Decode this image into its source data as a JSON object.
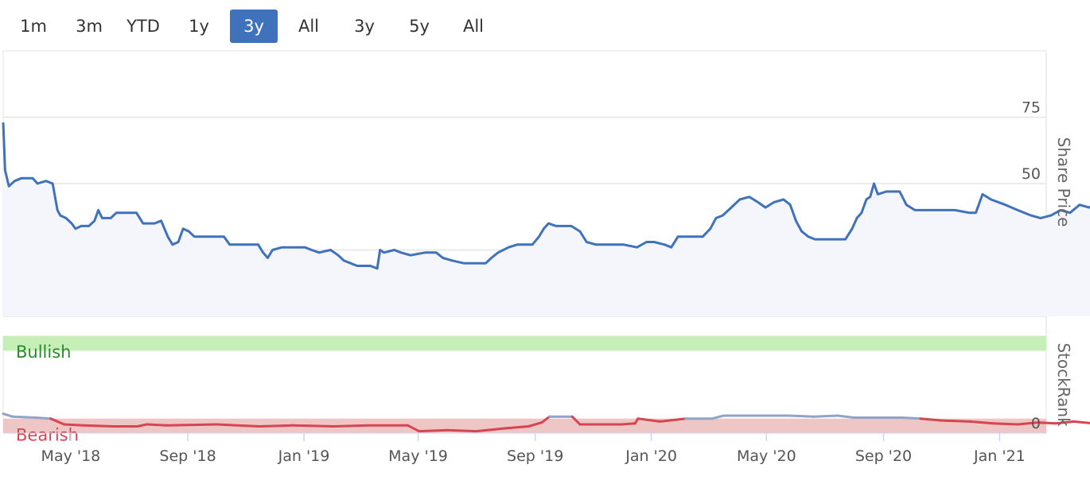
{
  "range_buttons": [
    {
      "label": "1m",
      "active": false
    },
    {
      "label": "3m",
      "active": false
    },
    {
      "label": "YTD",
      "active": false
    },
    {
      "label": "1y",
      "active": false
    },
    {
      "label": "3y",
      "active": true
    },
    {
      "label": "All",
      "active": false
    },
    {
      "label": "3y",
      "active": false
    },
    {
      "label": "5y",
      "active": false
    },
    {
      "label": "All",
      "active": false
    }
  ],
  "colors": {
    "price_line": "#3f72bb",
    "price_fill": "#f4f6fb",
    "bullish_band": "#c6efb7",
    "bearish_band": "#efc6c6",
    "bearish_line": "#d64550",
    "neutral_line": "#8ea4c8",
    "active_button": "#3f72bb"
  },
  "chart_data": [
    {
      "type": "line",
      "ylabel": "Share Price",
      "ylim": [
        0,
        100
      ],
      "y_ticks": [
        0,
        25,
        50,
        75
      ],
      "x_start": "2018-02-19",
      "x_end": "2021-02-19",
      "x_ticks": [
        {
          "label": "May '18",
          "date": "2018-05-01"
        },
        {
          "label": "Sep '18",
          "date": "2018-09-01"
        },
        {
          "label": "Jan '19",
          "date": "2019-01-01"
        },
        {
          "label": "May '19",
          "date": "2019-05-01"
        },
        {
          "label": "Sep '19",
          "date": "2019-09-01"
        },
        {
          "label": "Jan '20",
          "date": "2020-01-01"
        },
        {
          "label": "May '20",
          "date": "2020-05-01"
        },
        {
          "label": "Sep '20",
          "date": "2020-09-01"
        },
        {
          "label": "Jan '21",
          "date": "2021-01-01"
        }
      ],
      "series": [
        {
          "points": [
            [
              "2018-02-19",
              73
            ],
            [
              "2018-02-21",
              55
            ],
            [
              "2018-02-25",
              49
            ],
            [
              "2018-03-03",
              51
            ],
            [
              "2018-03-10",
              52
            ],
            [
              "2018-03-22",
              52
            ],
            [
              "2018-03-27",
              50
            ],
            [
              "2018-04-05",
              51
            ],
            [
              "2018-04-12",
              50
            ],
            [
              "2018-04-17",
              40
            ],
            [
              "2018-04-20",
              38
            ],
            [
              "2018-04-26",
              37
            ],
            [
              "2018-05-02",
              35
            ],
            [
              "2018-05-06",
              33
            ],
            [
              "2018-05-12",
              34
            ],
            [
              "2018-05-20",
              34
            ],
            [
              "2018-05-26",
              36
            ],
            [
              "2018-05-30",
              40
            ],
            [
              "2018-06-03",
              37
            ],
            [
              "2018-06-12",
              37
            ],
            [
              "2018-06-18",
              39
            ],
            [
              "2018-07-01",
              39
            ],
            [
              "2018-07-09",
              39
            ],
            [
              "2018-07-16",
              35
            ],
            [
              "2018-07-28",
              35
            ],
            [
              "2018-08-04",
              36
            ],
            [
              "2018-08-11",
              30
            ],
            [
              "2018-08-16",
              27
            ],
            [
              "2018-08-22",
              28
            ],
            [
              "2018-08-27",
              33
            ],
            [
              "2018-09-02",
              32
            ],
            [
              "2018-09-08",
              30
            ],
            [
              "2018-09-24",
              30
            ],
            [
              "2018-10-09",
              30
            ],
            [
              "2018-10-15",
              27
            ],
            [
              "2018-11-01",
              27
            ],
            [
              "2018-11-14",
              27
            ],
            [
              "2018-11-19",
              24
            ],
            [
              "2018-11-24",
              22
            ],
            [
              "2018-11-29",
              25
            ],
            [
              "2018-12-09",
              26
            ],
            [
              "2018-12-22",
              26
            ],
            [
              "2019-01-02",
              26
            ],
            [
              "2019-01-09",
              25
            ],
            [
              "2019-01-17",
              24
            ],
            [
              "2019-01-29",
              25
            ],
            [
              "2019-02-06",
              23
            ],
            [
              "2019-02-12",
              21
            ],
            [
              "2019-02-19",
              20
            ],
            [
              "2019-02-26",
              19
            ],
            [
              "2019-03-12",
              19
            ],
            [
              "2019-03-19",
              18
            ],
            [
              "2019-03-22",
              25
            ],
            [
              "2019-03-26",
              24
            ],
            [
              "2019-04-06",
              25
            ],
            [
              "2019-04-13",
              24
            ],
            [
              "2019-04-23",
              23
            ],
            [
              "2019-05-08",
              24
            ],
            [
              "2019-05-20",
              24
            ],
            [
              "2019-05-27",
              22
            ],
            [
              "2019-06-06",
              21
            ],
            [
              "2019-06-18",
              20
            ],
            [
              "2019-07-01",
              20
            ],
            [
              "2019-07-11",
              20
            ],
            [
              "2019-07-17",
              22
            ],
            [
              "2019-07-24",
              24
            ],
            [
              "2019-08-04",
              26
            ],
            [
              "2019-08-13",
              27
            ],
            [
              "2019-08-29",
              27
            ],
            [
              "2019-09-05",
              30
            ],
            [
              "2019-09-10",
              33
            ],
            [
              "2019-09-15",
              35
            ],
            [
              "2019-09-23",
              34
            ],
            [
              "2019-10-09",
              34
            ],
            [
              "2019-10-18",
              32
            ],
            [
              "2019-10-25",
              28
            ],
            [
              "2019-11-04",
              27
            ],
            [
              "2019-11-18",
              27
            ],
            [
              "2019-12-03",
              27
            ],
            [
              "2019-12-17",
              26
            ],
            [
              "2019-12-27",
              28
            ],
            [
              "2020-01-04",
              28
            ],
            [
              "2020-01-15",
              27
            ],
            [
              "2020-01-22",
              26
            ],
            [
              "2020-01-29",
              30
            ],
            [
              "2020-02-08",
              30
            ],
            [
              "2020-02-24",
              30
            ],
            [
              "2020-03-03",
              33
            ],
            [
              "2020-03-09",
              37
            ],
            [
              "2020-03-16",
              38
            ],
            [
              "2020-03-25",
              41
            ],
            [
              "2020-04-03",
              44
            ],
            [
              "2020-04-13",
              45
            ],
            [
              "2020-04-22",
              43
            ],
            [
              "2020-04-30",
              41
            ],
            [
              "2020-05-09",
              43
            ],
            [
              "2020-05-19",
              44
            ],
            [
              "2020-05-26",
              42
            ],
            [
              "2020-06-01",
              36
            ],
            [
              "2020-06-07",
              32
            ],
            [
              "2020-06-14",
              30
            ],
            [
              "2020-06-21",
              29
            ],
            [
              "2020-06-30",
              29
            ],
            [
              "2020-07-11",
              29
            ],
            [
              "2020-07-23",
              29
            ],
            [
              "2020-07-30",
              33
            ],
            [
              "2020-08-04",
              37
            ],
            [
              "2020-08-09",
              39
            ],
            [
              "2020-08-14",
              44
            ],
            [
              "2020-08-18",
              45
            ],
            [
              "2020-08-22",
              50
            ],
            [
              "2020-08-26",
              46
            ],
            [
              "2020-09-04",
              47
            ],
            [
              "2020-09-18",
              47
            ],
            [
              "2020-09-25",
              42
            ],
            [
              "2020-10-04",
              40
            ],
            [
              "2020-10-18",
              40
            ],
            [
              "2020-10-31",
              40
            ],
            [
              "2020-11-15",
              40
            ],
            [
              "2020-11-30",
              39
            ],
            [
              "2020-12-07",
              39
            ],
            [
              "2020-12-14",
              46
            ],
            [
              "2020-12-23",
              44
            ],
            [
              "2021-01-07",
              42
            ],
            [
              "2021-01-20",
              40
            ],
            [
              "2021-02-03",
              38
            ],
            [
              "2021-02-13",
              37
            ],
            [
              "2021-02-24",
              38
            ],
            [
              "2021-03-06",
              40
            ],
            [
              "2021-03-16",
              39
            ],
            [
              "2021-03-26",
              42
            ],
            [
              "2021-04-05",
              41
            ],
            [
              "2021-04-15",
              43
            ],
            [
              "2021-04-23",
              41
            ],
            [
              "2021-05-03",
              42
            ],
            [
              "2021-05-12",
              42
            ],
            [
              "2021-05-24",
              42
            ],
            [
              "2021-05-31",
              40
            ],
            [
              "2021-06-05",
              46
            ],
            [
              "2021-06-11",
              41
            ],
            [
              "2021-06-25",
              41
            ],
            [
              "2021-07-04",
              41
            ],
            [
              "2021-07-11",
              45
            ],
            [
              "2021-07-20",
              47
            ],
            [
              "2021-07-31",
              48
            ],
            [
              "2021-08-13",
              49
            ],
            [
              "2021-08-24",
              48
            ],
            [
              "2021-09-03",
              48
            ],
            [
              "2021-09-09",
              53
            ],
            [
              "2021-09-14",
              56
            ],
            [
              "2021-09-22",
              56
            ],
            [
              "2021-10-01",
              58
            ],
            [
              "2021-10-07",
              59
            ]
          ]
        }
      ]
    },
    {
      "type": "line",
      "ylabel": "StockRank",
      "y_tick": "0",
      "bands": [
        {
          "label": "Bullish",
          "from": 85,
          "to": 100
        },
        {
          "label": "Bearish",
          "from": 0,
          "to": 15
        }
      ],
      "ylim": [
        0,
        100
      ],
      "series": [
        {
          "points": [
            [
              "2018-02-19",
              20
            ],
            [
              "2018-03-01",
              17
            ],
            [
              "2018-03-25",
              16
            ],
            [
              "2018-04-10",
              15
            ],
            [
              "2018-04-24",
              9
            ],
            [
              "2018-05-15",
              8
            ],
            [
              "2018-06-15",
              7
            ],
            [
              "2018-07-10",
              7
            ],
            [
              "2018-07-20",
              9
            ],
            [
              "2018-08-10",
              8
            ],
            [
              "2018-10-01",
              9
            ],
            [
              "2018-11-15",
              7
            ],
            [
              "2018-12-20",
              8
            ],
            [
              "2019-02-01",
              7
            ],
            [
              "2019-03-10",
              8
            ],
            [
              "2019-04-20",
              8
            ],
            [
              "2019-05-02",
              2
            ],
            [
              "2019-06-01",
              3
            ],
            [
              "2019-07-01",
              2
            ],
            [
              "2019-08-01",
              5
            ],
            [
              "2019-08-25",
              7
            ],
            [
              "2019-09-08",
              11
            ],
            [
              "2019-09-16",
              17
            ],
            [
              "2019-10-10",
              17
            ],
            [
              "2019-10-18",
              9
            ],
            [
              "2019-11-10",
              9
            ],
            [
              "2019-12-01",
              9
            ],
            [
              "2019-12-15",
              10
            ],
            [
              "2019-12-18",
              15
            ],
            [
              "2020-01-10",
              12
            ],
            [
              "2020-02-06",
              15
            ],
            [
              "2020-03-05",
              15
            ],
            [
              "2020-03-17",
              18
            ],
            [
              "2020-05-10",
              18
            ],
            [
              "2020-05-25",
              18
            ],
            [
              "2020-06-20",
              17
            ],
            [
              "2020-07-15",
              18
            ],
            [
              "2020-08-01",
              16
            ],
            [
              "2020-09-20",
              16
            ],
            [
              "2020-10-10",
              15
            ],
            [
              "2020-11-01",
              13
            ],
            [
              "2020-12-01",
              12
            ],
            [
              "2020-12-25",
              10
            ],
            [
              "2021-01-20",
              9
            ],
            [
              "2021-02-10",
              11
            ],
            [
              "2021-03-01",
              10
            ],
            [
              "2021-03-20",
              12
            ],
            [
              "2021-04-10",
              10
            ],
            [
              "2021-05-01",
              9
            ],
            [
              "2021-05-20",
              8
            ],
            [
              "2021-06-01",
              7
            ],
            [
              "2021-06-10",
              10
            ],
            [
              "2021-07-01",
              9
            ],
            [
              "2021-07-20",
              10
            ],
            [
              "2021-08-01",
              12
            ],
            [
              "2021-08-20",
              11
            ],
            [
              "2021-09-05",
              12
            ],
            [
              "2021-09-15",
              8
            ],
            [
              "2021-09-22",
              11
            ],
            [
              "2021-10-07",
              13
            ]
          ]
        }
      ]
    }
  ]
}
